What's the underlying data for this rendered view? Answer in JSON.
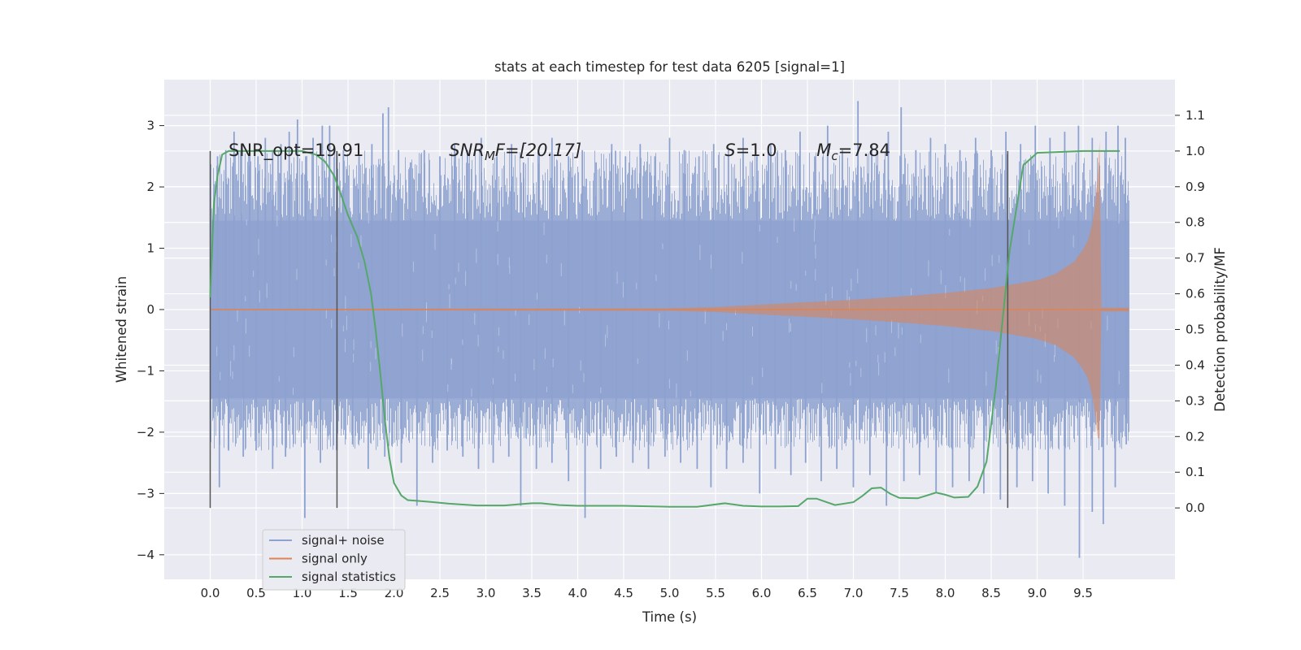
{
  "chart_data": {
    "type": "line",
    "title": "stats at each timestep for test data 6205 [signal=1]",
    "xlabel": "Time (s)",
    "ylabel": "Whitened strain",
    "ylabel_right": "Detection probability/MF",
    "xlim": [
      -0.5,
      10.5
    ],
    "ylim": [
      -4.4,
      3.75
    ],
    "ylim_right": [
      -0.2,
      1.2
    ],
    "x_ticks": [
      0.0,
      0.5,
      1.0,
      1.5,
      2.0,
      2.5,
      3.0,
      3.5,
      4.0,
      4.5,
      5.0,
      5.5,
      6.0,
      6.5,
      7.0,
      7.5,
      8.0,
      8.5,
      9.0,
      9.5
    ],
    "x_tick_labels": [
      "0.0",
      "0.5",
      "1.0",
      "1.5",
      "2.0",
      "2.5",
      "3.0",
      "3.5",
      "4.0",
      "4.5",
      "5.0",
      "5.5",
      "6.0",
      "6.5",
      "7.0",
      "7.5",
      "8.0",
      "8.5",
      "9.0",
      "9.5"
    ],
    "y_ticks": [
      -4,
      -3,
      -2,
      -1,
      0,
      1,
      2,
      3
    ],
    "y_tick_labels": [
      "−4",
      "−3",
      "−2",
      "−1",
      "0",
      "1",
      "2",
      "3"
    ],
    "y_right_ticks": [
      0.0,
      0.1,
      0.2,
      0.3,
      0.4,
      0.5,
      0.6,
      0.7,
      0.8,
      0.9,
      1.0,
      1.1
    ],
    "y_right_tick_labels": [
      "0.0",
      "0.1",
      "0.2",
      "0.3",
      "0.4",
      "0.5",
      "0.6",
      "0.7",
      "0.8",
      "0.9",
      "1.0",
      "1.1"
    ],
    "grid": true,
    "legend": {
      "position": "lower-left"
    },
    "colors": {
      "background": "#eaeaf2",
      "grid": "#ffffff",
      "noise": "#8ea2d0",
      "signal": "#dd8452",
      "stats": "#55a868",
      "vline": "#555555"
    },
    "series": [
      {
        "name": "signal+ noise",
        "description_kind": "dense noise band",
        "x_range": [
          0.0,
          10.0
        ],
        "band_core": [
          -1.45,
          1.45
        ],
        "upward_spikes": [
          [
            0.08,
            2.5
          ],
          [
            0.17,
            2.6
          ],
          [
            0.26,
            2.9
          ],
          [
            0.34,
            2.7
          ],
          [
            0.43,
            2.6
          ],
          [
            0.52,
            2.5
          ],
          [
            0.6,
            2.8
          ],
          [
            0.68,
            2.6
          ],
          [
            0.77,
            2.7
          ],
          [
            0.86,
            2.9
          ],
          [
            0.95,
            3.1
          ],
          [
            1.04,
            2.5
          ],
          [
            1.12,
            2.8
          ],
          [
            1.22,
            3.0
          ],
          [
            1.3,
            3.0
          ],
          [
            1.45,
            2.6
          ],
          [
            1.62,
            2.5
          ],
          [
            1.76,
            2.7
          ],
          [
            1.88,
            3.2
          ],
          [
            1.94,
            3.3
          ],
          [
            2.05,
            2.6
          ],
          [
            2.18,
            2.4
          ],
          [
            2.33,
            2.6
          ],
          [
            2.5,
            2.5
          ],
          [
            2.66,
            2.7
          ],
          [
            2.8,
            2.6
          ],
          [
            2.95,
            2.8
          ],
          [
            3.12,
            2.5
          ],
          [
            3.28,
            2.7
          ],
          [
            3.41,
            2.4
          ],
          [
            3.57,
            2.6
          ],
          [
            3.72,
            2.8
          ],
          [
            3.9,
            2.5
          ],
          [
            4.05,
            2.6
          ],
          [
            4.2,
            2.4
          ],
          [
            4.37,
            2.7
          ],
          [
            4.52,
            2.5
          ],
          [
            4.68,
            2.7
          ],
          [
            4.84,
            2.5
          ],
          [
            5.0,
            2.8
          ],
          [
            5.16,
            2.6
          ],
          [
            5.32,
            2.5
          ],
          [
            5.48,
            2.7
          ],
          [
            5.64,
            2.6
          ],
          [
            5.8,
            2.8
          ],
          [
            5.95,
            2.5
          ],
          [
            6.1,
            2.7
          ],
          [
            6.26,
            2.6
          ],
          [
            6.42,
            2.9
          ],
          [
            6.58,
            2.5
          ],
          [
            6.72,
            3.0
          ],
          [
            6.88,
            2.6
          ],
          [
            7.05,
            3.4
          ],
          [
            7.2,
            2.7
          ],
          [
            7.38,
            2.9
          ],
          [
            7.52,
            3.3
          ],
          [
            7.68,
            2.6
          ],
          [
            7.84,
            2.8
          ],
          [
            8.0,
            2.7
          ],
          [
            8.16,
            2.6
          ],
          [
            8.33,
            2.8
          ],
          [
            8.5,
            2.6
          ],
          [
            8.66,
            2.9
          ],
          [
            8.82,
            2.7
          ],
          [
            8.98,
            3.0
          ],
          [
            9.14,
            2.8
          ],
          [
            9.3,
            2.9
          ],
          [
            9.45,
            3.0
          ],
          [
            9.6,
            2.8
          ],
          [
            9.75,
            2.9
          ],
          [
            9.88,
            3.0
          ],
          [
            9.96,
            2.8
          ]
        ],
        "downward_spikes": [
          [
            0.1,
            -2.9
          ],
          [
            0.2,
            -2.3
          ],
          [
            0.36,
            -2.4
          ],
          [
            0.5,
            -2.3
          ],
          [
            0.68,
            -2.6
          ],
          [
            0.82,
            -2.4
          ],
          [
            1.03,
            -3.4
          ],
          [
            1.2,
            -2.5
          ],
          [
            1.38,
            -2.3
          ],
          [
            1.55,
            -2.2
          ],
          [
            1.72,
            -2.6
          ],
          [
            1.9,
            -2.4
          ],
          [
            2.08,
            -2.5
          ],
          [
            2.25,
            -3.2
          ],
          [
            2.42,
            -2.5
          ],
          [
            2.58,
            -2.3
          ],
          [
            2.75,
            -2.4
          ],
          [
            2.92,
            -2.6
          ],
          [
            3.08,
            -2.5
          ],
          [
            3.25,
            -2.4
          ],
          [
            3.38,
            -3.2
          ],
          [
            3.55,
            -2.6
          ],
          [
            3.72,
            -2.5
          ],
          [
            3.9,
            -2.8
          ],
          [
            4.08,
            -3.4
          ],
          [
            4.25,
            -2.6
          ],
          [
            4.42,
            -2.4
          ],
          [
            4.6,
            -2.5
          ],
          [
            4.77,
            -2.6
          ],
          [
            4.95,
            -2.4
          ],
          [
            5.12,
            -2.5
          ],
          [
            5.3,
            -2.6
          ],
          [
            5.45,
            -2.9
          ],
          [
            5.62,
            -2.6
          ],
          [
            5.8,
            -2.5
          ],
          [
            5.98,
            -3.0
          ],
          [
            6.15,
            -2.6
          ],
          [
            6.32,
            -2.7
          ],
          [
            6.48,
            -2.5
          ],
          [
            6.65,
            -2.8
          ],
          [
            6.82,
            -2.6
          ],
          [
            7.0,
            -2.9
          ],
          [
            7.18,
            -2.7
          ],
          [
            7.36,
            -3.2
          ],
          [
            7.55,
            -2.8
          ],
          [
            7.72,
            -2.7
          ],
          [
            7.9,
            -3.0
          ],
          [
            8.08,
            -2.9
          ],
          [
            8.26,
            -2.8
          ],
          [
            8.42,
            -3.0
          ],
          [
            8.6,
            -3.1
          ],
          [
            8.78,
            -2.9
          ],
          [
            8.95,
            -2.8
          ],
          [
            9.12,
            -3.0
          ],
          [
            9.3,
            -3.2
          ],
          [
            9.46,
            -4.05
          ],
          [
            9.6,
            -3.3
          ],
          [
            9.72,
            -3.5
          ],
          [
            9.85,
            -2.9
          ],
          [
            9.97,
            -2.2
          ]
        ]
      },
      {
        "name": "signal only",
        "description_kind": "chirp envelope",
        "x": [
          0.0,
          5.0,
          5.5,
          6.0,
          6.5,
          7.0,
          7.5,
          8.0,
          8.5,
          9.0,
          9.2,
          9.4,
          9.5,
          9.55,
          9.6,
          9.63,
          9.66,
          9.68,
          9.7,
          10.0
        ],
        "amplitude": [
          0.01,
          0.02,
          0.04,
          0.08,
          0.12,
          0.16,
          0.21,
          0.27,
          0.35,
          0.48,
          0.58,
          0.78,
          0.98,
          1.12,
          1.4,
          1.7,
          2.2,
          2.75,
          0.03,
          0.03
        ]
      },
      {
        "name": "signal statistics",
        "axis": "right",
        "x": [
          0.0,
          0.04,
          0.08,
          0.13,
          0.2,
          0.3,
          0.5,
          0.8,
          1.0,
          1.15,
          1.25,
          1.35,
          1.42,
          1.5,
          1.6,
          1.68,
          1.75,
          1.8,
          1.85,
          1.9,
          1.95,
          2.0,
          2.08,
          2.15,
          2.25,
          2.4,
          2.6,
          2.9,
          3.2,
          3.5,
          3.6,
          3.8,
          4.0,
          4.5,
          5.0,
          5.3,
          5.6,
          5.8,
          6.0,
          6.2,
          6.4,
          6.5,
          6.6,
          6.8,
          7.0,
          7.1,
          7.2,
          7.3,
          7.4,
          7.5,
          7.7,
          7.9,
          8.0,
          8.1,
          8.25,
          8.35,
          8.45,
          8.55,
          8.7,
          8.85,
          9.0,
          9.5,
          9.9
        ],
        "y": [
          0.59,
          0.85,
          0.93,
          0.99,
          1.0,
          1.0,
          1.0,
          1.0,
          1.0,
          0.99,
          0.97,
          0.93,
          0.88,
          0.82,
          0.76,
          0.69,
          0.6,
          0.5,
          0.38,
          0.25,
          0.14,
          0.07,
          0.035,
          0.022,
          0.02,
          0.017,
          0.012,
          0.007,
          0.007,
          0.013,
          0.013,
          0.008,
          0.006,
          0.006,
          0.003,
          0.003,
          0.013,
          0.006,
          0.004,
          0.004,
          0.005,
          0.026,
          0.026,
          0.008,
          0.016,
          0.034,
          0.055,
          0.057,
          0.04,
          0.028,
          0.027,
          0.043,
          0.037,
          0.029,
          0.031,
          0.06,
          0.13,
          0.34,
          0.72,
          0.96,
          0.995,
          1.0,
          1.0
        ]
      }
    ],
    "vertical_lines": [
      {
        "x": 0.0,
        "y_top": 1.0,
        "y_bottom": 0.0
      },
      {
        "x": 1.38,
        "y_top": 1.0,
        "y_bottom": 0.0
      },
      {
        "x": 8.68,
        "y_top": 1.0,
        "y_bottom": 0.0
      }
    ],
    "annotations": [
      {
        "id": "snr-opt",
        "x": 0.2,
        "y": 2.6,
        "text": "SNR_opt=19.91"
      },
      {
        "id": "snr-mf",
        "x": 2.6,
        "y": 2.6,
        "base": "SNR",
        "sub": "M",
        "rest": "F=[20.17]"
      },
      {
        "id": "s-val",
        "x": 5.6,
        "y": 2.6,
        "base": "S",
        "rest": "=1.0"
      },
      {
        "id": "mc-val",
        "x": 6.6,
        "y": 2.6,
        "base": "M",
        "sub": "c",
        "rest": "=7.84"
      }
    ]
  }
}
